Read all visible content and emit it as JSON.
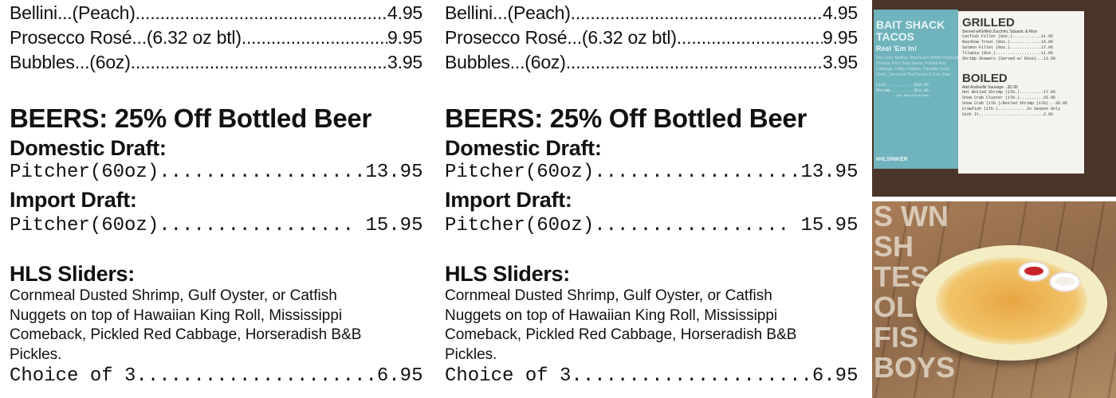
{
  "menu": {
    "wines": [
      {
        "name": "Bellini...(Peach)",
        "price": "4.95"
      },
      {
        "name": "Prosecco Rosé...(6.32 oz btl)",
        "price": "9.95"
      },
      {
        "name": "Bubbles...(6oz)",
        "price": "3.95"
      }
    ],
    "beers_heading": "BEERS: 25% Off Bottled Beer",
    "domestic_heading": "Domestic Draft:",
    "domestic_line": "Pitcher(60oz)..................13.95",
    "import_heading": "Import Draft:",
    "import_line": "Pitcher(60oz)................. 15.95",
    "sliders_heading": "HLS Sliders:",
    "sliders_desc": "Cornmeal Dusted Shrimp, Gulf Oyster, or Catfish Nuggets on top of Hawaiian King Roll, Mississippi Comeback, Pickled Red Cabbage, Horseradish B&B Pickles.",
    "sliders_line": "Choice of 3.....................6.95"
  },
  "images": {
    "sign": {
      "tacos_title": "BAIT SHACK TACOS",
      "tacos_sub": "Reel 'Em In!",
      "tacos_desc": "Two Corn Tortillas, Blackened (White Fish/Gulf Shrimp), Pico, Baja Sauce, Pickled Red Cabbage, Cotija, Cilantro, Tomatillo Salsa (Side). Served w/ Red Beans & Cole Slaw.",
      "tacos_fish": "Fish............$10.95",
      "tacos_shrimp": "Shrimp..........$11.95",
      "tacos_note": "(No Substitutions)",
      "hashtag": "#HLSINKER",
      "grilled_title": "GRILLED",
      "grilled_note": "Served w/Grilled Zucchini, Squash, & Rice",
      "grilled_items": [
        "Catfish Fillet (8oz.)............11.95",
        "Rainbow Trout (8oz.).............15.95",
        "Salmon Fillet (8oz.).............17.95",
        "Tilapia (8oz.)...................11.95",
        "Shrimp Skewers (Served w/ Rice)...13.50"
      ],
      "boiled_title": "BOILED",
      "boiled_note": "Add Andouille Sausage....$2.95",
      "boiled_items": [
        "Hot Boiled Shrimp (1lb.)..........17.95",
        "Snow Crab Cluster (1lb.)..........25.95",
        "Snow Crab (1lb.)/Boiled Shrimp (1lb)...35.95",
        "Crawfish (1lb.)............In Season Only",
        "Sink It...........................2.95"
      ]
    },
    "photo": {
      "stencil_text": "S WN SH TES OL FIS BOYS"
    }
  }
}
